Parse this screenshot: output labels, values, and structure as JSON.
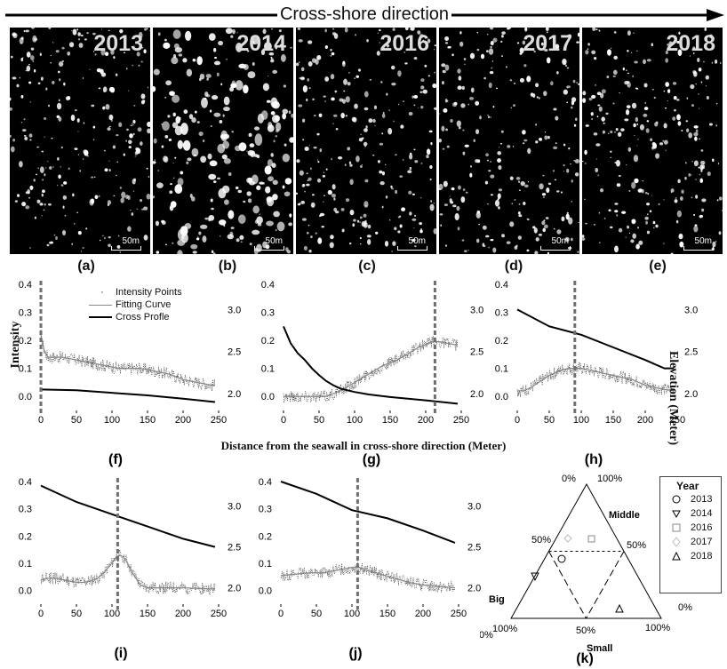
{
  "header": {
    "title": "Cross-shore direction"
  },
  "images": [
    {
      "label": "2013",
      "panel": "(a)",
      "scale": "50m"
    },
    {
      "label": "2014",
      "panel": "(b)",
      "scale": "50m"
    },
    {
      "label": "2016",
      "panel": "(c)",
      "scale": "50m"
    },
    {
      "label": "2017",
      "panel": "(d)",
      "scale": "50m"
    },
    {
      "label": "2018",
      "panel": "(e)",
      "scale": "50m"
    }
  ],
  "axis_common": {
    "x_title": "Distance from the seawall in cross-shore direction (Meter)",
    "y_left_title": "Intensity",
    "y_right_title": "Elevation (Meter)",
    "x_ticks": [
      "0",
      "50",
      "100",
      "150",
      "200",
      "250"
    ],
    "y_left_ticks": [
      "0.0",
      "0.1",
      "0.2",
      "0.3",
      "0.4"
    ],
    "y_right_ticks": [
      "2.0",
      "2.5",
      "3.0"
    ]
  },
  "legend_plot": [
    "Intensity Points",
    "Fitting Curve",
    "Cross Profle"
  ],
  "ternary": {
    "panel": "(k)",
    "labels": {
      "top": "0%",
      "top_right": "100%",
      "mid_left": "50%",
      "mid_right": "50%",
      "bottom_left": "0%",
      "bottom_right": "100%",
      "bottom_mid": "50%",
      "left_outer": "100%",
      "right_outer": "0%"
    },
    "axis_names": {
      "middle": "Middle",
      "big": "Big",
      "small": "Small"
    },
    "legend_title": "Year",
    "legend": [
      {
        "year": "2013",
        "symbol": "circle"
      },
      {
        "year": "2014",
        "symbol": "triangle-down"
      },
      {
        "year": "2016",
        "symbol": "square"
      },
      {
        "year": "2017",
        "symbol": "diamond"
      },
      {
        "year": "2018",
        "symbol": "triangle-up"
      }
    ]
  },
  "chart_data": [
    {
      "type": "line",
      "panel": "(f)",
      "xlim": [
        0,
        250
      ],
      "ylim": [
        -0.05,
        0.4
      ],
      "y2lim": [
        1.8,
        3.3
      ],
      "vline": 0,
      "series": [
        {
          "name": "Fitting Curve",
          "x": [
            0,
            5,
            10,
            20,
            30,
            40,
            50,
            60,
            70,
            80,
            90,
            100,
            110,
            120,
            130,
            140,
            150,
            160,
            170,
            180,
            190,
            200,
            210,
            220,
            230,
            240,
            245
          ],
          "values": [
            0.22,
            0.16,
            0.14,
            0.14,
            0.14,
            0.135,
            0.13,
            0.125,
            0.12,
            0.115,
            0.11,
            0.105,
            0.1,
            0.1,
            0.1,
            0.1,
            0.095,
            0.09,
            0.085,
            0.08,
            0.07,
            0.06,
            0.055,
            0.05,
            0.045,
            0.04,
            0.04
          ]
        },
        {
          "name": "Cross Profle",
          "x": [
            0,
            50,
            100,
            150,
            200,
            245
          ],
          "values": [
            2.05,
            2.04,
            2.01,
            1.98,
            1.94,
            1.9
          ]
        }
      ]
    },
    {
      "type": "line",
      "panel": "(g)",
      "xlim": [
        0,
        250
      ],
      "ylim": [
        -0.05,
        0.4
      ],
      "y2lim": [
        1.8,
        3.3
      ],
      "vline": 213,
      "series": [
        {
          "name": "Fitting Curve",
          "x": [
            0,
            20,
            40,
            60,
            70,
            80,
            90,
            100,
            110,
            120,
            130,
            140,
            150,
            160,
            170,
            180,
            190,
            200,
            210,
            220,
            230,
            240,
            245
          ],
          "values": [
            0.0,
            0.0,
            0.0,
            0.0,
            0.01,
            0.02,
            0.035,
            0.05,
            0.065,
            0.08,
            0.095,
            0.11,
            0.12,
            0.13,
            0.145,
            0.16,
            0.175,
            0.185,
            0.195,
            0.195,
            0.19,
            0.185,
            0.185
          ]
        },
        {
          "name": "Cross Profle",
          "x": [
            0,
            10,
            20,
            30,
            40,
            50,
            60,
            70,
            80,
            100,
            120,
            150,
            200,
            245
          ],
          "values": [
            2.8,
            2.6,
            2.48,
            2.4,
            2.3,
            2.22,
            2.15,
            2.1,
            2.06,
            2.02,
            1.99,
            1.96,
            1.92,
            1.88
          ]
        }
      ]
    },
    {
      "type": "line",
      "panel": "(h)",
      "xlim": [
        0,
        250
      ],
      "ylim": [
        -0.05,
        0.4
      ],
      "y2lim": [
        1.8,
        3.3
      ],
      "vline": 90,
      "series": [
        {
          "name": "Fitting Curve",
          "x": [
            0,
            10,
            20,
            30,
            40,
            50,
            60,
            70,
            80,
            90,
            100,
            110,
            120,
            130,
            140,
            150,
            160,
            170,
            180,
            190,
            200,
            210,
            220,
            230,
            245
          ],
          "values": [
            0.02,
            0.02,
            0.03,
            0.045,
            0.06,
            0.075,
            0.085,
            0.095,
            0.1,
            0.1,
            0.1,
            0.095,
            0.09,
            0.085,
            0.08,
            0.075,
            0.07,
            0.065,
            0.06,
            0.05,
            0.04,
            0.035,
            0.03,
            0.025,
            0.02
          ]
        },
        {
          "name": "Cross Profle",
          "x": [
            0,
            50,
            100,
            150,
            200,
            230,
            245
          ],
          "values": [
            3.0,
            2.8,
            2.7,
            2.55,
            2.4,
            2.3,
            2.3
          ]
        }
      ]
    },
    {
      "type": "line",
      "panel": "(i)",
      "xlim": [
        0,
        250
      ],
      "ylim": [
        -0.05,
        0.4
      ],
      "y2lim": [
        1.8,
        3.3
      ],
      "vline": 108,
      "series": [
        {
          "name": "Fitting Curve",
          "x": [
            0,
            10,
            20,
            30,
            40,
            50,
            60,
            70,
            80,
            90,
            100,
            105,
            110,
            115,
            120,
            130,
            140,
            150,
            160,
            170,
            200,
            245
          ],
          "values": [
            0.04,
            0.045,
            0.045,
            0.04,
            0.035,
            0.03,
            0.03,
            0.035,
            0.045,
            0.07,
            0.1,
            0.12,
            0.13,
            0.125,
            0.11,
            0.06,
            0.02,
            0.01,
            0.01,
            0.01,
            0.01,
            0.005
          ]
        },
        {
          "name": "Cross Profle",
          "x": [
            0,
            50,
            100,
            150,
            200,
            245
          ],
          "values": [
            3.25,
            3.05,
            2.9,
            2.75,
            2.6,
            2.5
          ]
        }
      ]
    },
    {
      "type": "line",
      "panel": "(j)",
      "xlim": [
        0,
        250
      ],
      "ylim": [
        -0.05,
        0.4
      ],
      "y2lim": [
        1.8,
        3.3
      ],
      "vline": 108,
      "series": [
        {
          "name": "Fitting Curve",
          "x": [
            0,
            20,
            40,
            60,
            80,
            100,
            110,
            120,
            140,
            160,
            180,
            200,
            220,
            245
          ],
          "values": [
            0.055,
            0.06,
            0.065,
            0.065,
            0.075,
            0.085,
            0.085,
            0.075,
            0.06,
            0.045,
            0.03,
            0.02,
            0.015,
            0.01
          ]
        },
        {
          "name": "Cross Profle",
          "x": [
            0,
            50,
            100,
            150,
            200,
            245
          ],
          "values": [
            3.3,
            3.15,
            2.95,
            2.85,
            2.7,
            2.55
          ]
        }
      ]
    }
  ],
  "colors": {
    "curve": "#888888",
    "profile": "#000000",
    "vline": "#6e6e6e"
  }
}
